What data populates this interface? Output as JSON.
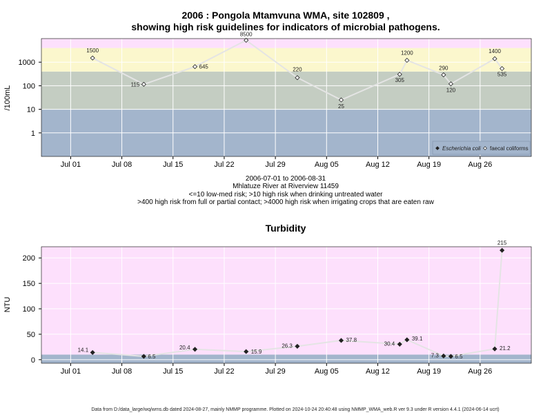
{
  "chart_data": [
    {
      "type": "scatter",
      "title": "2006 : Pongola Mtamvuna WMA, site 102809 ,",
      "subtitle": "showing high risk guidelines for indicators of microbial pathogens.",
      "ylabel": "/100mL",
      "yscale": "log",
      "ylim": [
        0.1,
        10000
      ],
      "yticks": [
        1,
        10,
        100,
        1000
      ],
      "ytick_labels": [
        "1",
        "10",
        "100",
        "1000"
      ],
      "xlim": [
        "2006-06-27",
        "2006-09-02"
      ],
      "xticks": [
        "2006-07-01",
        "2006-07-08",
        "2006-07-15",
        "2006-07-22",
        "2006-07-29",
        "2006-08-05",
        "2006-08-12",
        "2006-08-19",
        "2006-08-26"
      ],
      "xtick_labels": [
        "Jul 01",
        "Jul 08",
        "Jul 15",
        "Jul 22",
        "Jul 29",
        "Aug 05",
        "Aug 12",
        "Aug 19",
        "Aug 26"
      ],
      "bands": [
        {
          "from": 0.1,
          "to": 10,
          "color": "#a3b5cc"
        },
        {
          "from": 10,
          "to": 400,
          "color": "#c4cdc2"
        },
        {
          "from": 400,
          "to": 4000,
          "color": "#fbf7cd"
        },
        {
          "from": 4000,
          "to": 10000,
          "color": "#fde0fc"
        }
      ],
      "grid": true,
      "legend_position": "bottom-right",
      "series": [
        {
          "name": "Escherichia coli",
          "marker": "filled-diamond",
          "points": []
        },
        {
          "name": "faecal coliforms",
          "marker": "open-diamond",
          "line_color": "#e4e4e4",
          "points": [
            {
              "x": "2006-07-04",
              "y": 1500,
              "label": "1500"
            },
            {
              "x": "2006-07-11",
              "y": 115,
              "label": "115"
            },
            {
              "x": "2006-07-18",
              "y": 645,
              "label": "645"
            },
            {
              "x": "2006-07-25",
              "y": 8500,
              "label": "8500"
            },
            {
              "x": "2006-08-01",
              "y": 220,
              "label": "220"
            },
            {
              "x": "2006-08-07",
              "y": 25,
              "label": "25"
            },
            {
              "x": "2006-08-15",
              "y": 305,
              "label": "305"
            },
            {
              "x": "2006-08-16",
              "y": 1200,
              "label": "1200"
            },
            {
              "x": "2006-08-21",
              "y": 290,
              "label": "290"
            },
            {
              "x": "2006-08-22",
              "y": 120,
              "label": "120"
            },
            {
              "x": "2006-08-28",
              "y": 1400,
              "label": "1400"
            },
            {
              "x": "2006-08-29",
              "y": 535,
              "label": "535"
            }
          ]
        }
      ],
      "captions": [
        "2006-07-01 to 2006-08-31",
        "Mhlatuze River at Riverview 11459",
        "<=10 low-med risk; >10 high risk when drinking untreated water",
        ">400 high risk from full or partial contact; >4000 high risk when irrigating crops that are eaten raw"
      ]
    },
    {
      "type": "scatter",
      "title": "Turbidity",
      "ylabel": "NTU",
      "ylim": [
        -7,
        222
      ],
      "yticks": [
        0,
        50,
        100,
        150,
        200
      ],
      "ytick_labels": [
        "0",
        "50",
        "100",
        "150",
        "200"
      ],
      "xlim": [
        "2006-06-27",
        "2006-09-02"
      ],
      "xticks": [
        "2006-07-01",
        "2006-07-08",
        "2006-07-15",
        "2006-07-22",
        "2006-07-29",
        "2006-08-05",
        "2006-08-12",
        "2006-08-19",
        "2006-08-26"
      ],
      "xtick_labels": [
        "Jul 01",
        "Jul 08",
        "Jul 15",
        "Jul 22",
        "Jul 29",
        "Aug 05",
        "Aug 12",
        "Aug 19",
        "Aug 26"
      ],
      "bands": [
        {
          "from": -7,
          "to": 10,
          "color": "#a3b5cc"
        },
        {
          "from": 10,
          "to": 222,
          "color": "#fde0fc"
        }
      ],
      "grid": true,
      "series": [
        {
          "marker": "filled-diamond",
          "line_color": "#e4e4e4",
          "points": [
            {
              "x": "2006-07-04",
              "y": 14.1,
              "label": "14.1"
            },
            {
              "x": "2006-07-11",
              "y": 6.5,
              "label": "6.5"
            },
            {
              "x": "2006-07-18",
              "y": 20.4,
              "label": "20.4"
            },
            {
              "x": "2006-07-25",
              "y": 15.9,
              "label": "15.9"
            },
            {
              "x": "2006-08-01",
              "y": 26.3,
              "label": "26.3"
            },
            {
              "x": "2006-08-07",
              "y": 37.8,
              "label": "37.8"
            },
            {
              "x": "2006-08-15",
              "y": 30.4,
              "label": "30.4"
            },
            {
              "x": "2006-08-16",
              "y": 39.1,
              "label": "39.1"
            },
            {
              "x": "2006-08-21",
              "y": 7.3,
              "label": "7.3"
            },
            {
              "x": "2006-08-22",
              "y": 6.5,
              "label": "6.5"
            },
            {
              "x": "2006-08-28",
              "y": 21.2,
              "label": "21.2"
            },
            {
              "x": "2006-08-29",
              "y": 215,
              "label": "215"
            }
          ]
        }
      ]
    }
  ],
  "footer": "Data from D:/data_large/wq/wms.db dated 2024-08-27, mainly NMMP programme. Plotted on 2024-10-24 20:40:48 using NMMP_WMA_web.R ver 9.3 under R version 4.4.1 (2024-06-14 ucrt)"
}
